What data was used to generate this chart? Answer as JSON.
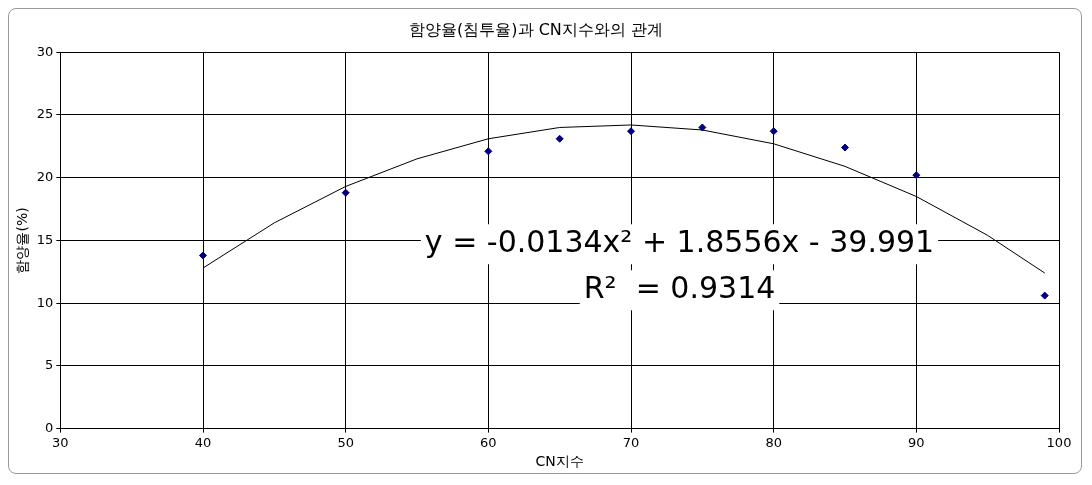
{
  "chart_data": {
    "type": "scatter",
    "title": "함양율(침투율)과 CN지수와의 관계",
    "xlabel": "CN지수",
    "ylabel": "함양율(%)",
    "xlim": [
      30,
      100
    ],
    "xticks": [
      30,
      40,
      50,
      60,
      70,
      80,
      90,
      100
    ],
    "ylim": [
      0,
      30
    ],
    "yticks": [
      0,
      5,
      10,
      15,
      20,
      25,
      30
    ],
    "grid": true,
    "legend": false,
    "marker": "diamond",
    "series": [
      {
        "type": "scatter",
        "color": "#000080",
        "x": [
          40,
          50,
          60,
          65,
          70,
          75,
          80,
          85,
          90,
          99
        ],
        "values": [
          13.8,
          18.8,
          22.1,
          23.1,
          23.7,
          24.0,
          23.7,
          22.4,
          20.2,
          10.6
        ]
      },
      {
        "type": "line",
        "color": "#000000",
        "marker": "none",
        "x": [
          40,
          45,
          50,
          55,
          60,
          65,
          70,
          75,
          80,
          85,
          90,
          95,
          99
        ],
        "values": [
          12.8,
          16.4,
          19.3,
          21.5,
          23.1,
          24.0,
          24.2,
          23.8,
          22.7,
          20.9,
          18.5,
          15.4,
          12.4
        ]
      }
    ],
    "annotations": [
      "y = -0.0134x² + 1.8556x - 39.991",
      "R²  = 0.9314"
    ]
  }
}
